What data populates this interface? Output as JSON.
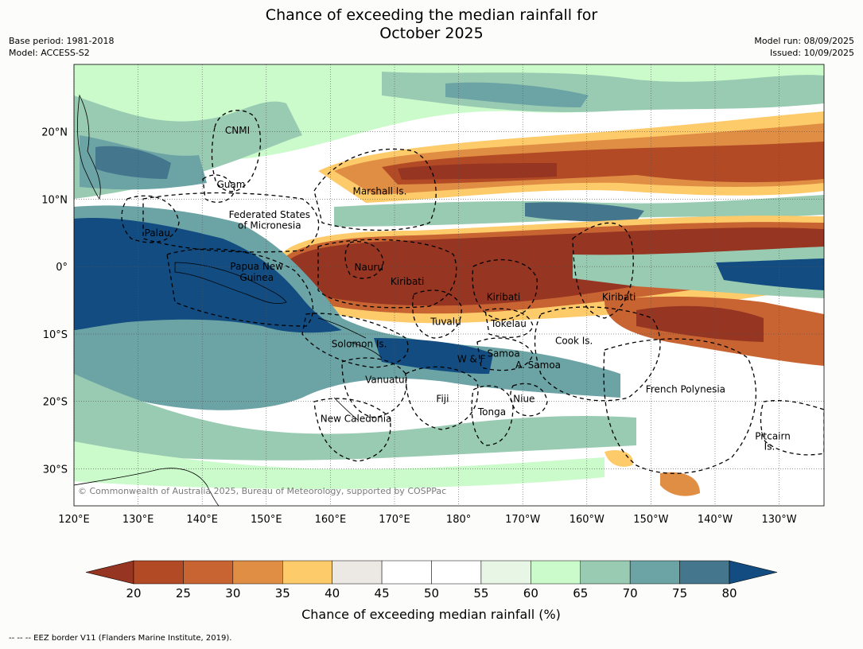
{
  "header": {
    "title_line1": "Chance of exceeding the median rainfall for",
    "title_line2": "October 2025",
    "base_period": "Base period: 1981-2018",
    "model": "Model: ACCESS-S2",
    "model_run": "Model run: 08/09/2025",
    "issued": "Issued: 10/09/2025"
  },
  "map": {
    "lat_ticks": [
      {
        "lat": 20,
        "label": "20°N"
      },
      {
        "lat": 10,
        "label": "10°N"
      },
      {
        "lat": 0,
        "label": "0°"
      },
      {
        "lat": -10,
        "label": "10°S"
      },
      {
        "lat": -20,
        "label": "20°S"
      },
      {
        "lat": -30,
        "label": "30°S"
      }
    ],
    "lon_ticks": [
      {
        "lon": 120,
        "label": "120°E"
      },
      {
        "lon": 130,
        "label": "130°E"
      },
      {
        "lon": 140,
        "label": "140°E"
      },
      {
        "lon": 150,
        "label": "150°E"
      },
      {
        "lon": 160,
        "label": "160°E"
      },
      {
        "lon": 170,
        "label": "170°E"
      },
      {
        "lon": 180,
        "label": "180°"
      },
      {
        "lon": 190,
        "label": "170°W"
      },
      {
        "lon": 200,
        "label": "160°W"
      },
      {
        "lon": 210,
        "label": "150°W"
      },
      {
        "lon": 220,
        "label": "140°W"
      },
      {
        "lon": 230,
        "label": "130°W"
      }
    ],
    "region_labels": [
      {
        "name": "CNMI",
        "lon": 145.5,
        "lat": 20.2
      },
      {
        "name": "Guam",
        "lon": 144.5,
        "lat": 12.2
      },
      {
        "name": "Marshall Is.",
        "lon": 167.7,
        "lat": 11.2
      },
      {
        "name": "Federated States",
        "lon": 150.5,
        "lat": 7.7
      },
      {
        "name": "of Micronesia",
        "lon": 150.5,
        "lat": 6.1
      },
      {
        "name": "Palau",
        "lon": 133,
        "lat": 5
      },
      {
        "name": "Papua New",
        "lon": 148.5,
        "lat": 0
      },
      {
        "name": "Guinea",
        "lon": 148.5,
        "lat": -1.6
      },
      {
        "name": "Nauru",
        "lon": 166,
        "lat": -0.1
      },
      {
        "name": "Kiribati",
        "lon": 172,
        "lat": -2.2
      },
      {
        "name": "Kiribati",
        "lon": 187,
        "lat": -4.5
      },
      {
        "name": "Kiribati",
        "lon": 205,
        "lat": -4.5
      },
      {
        "name": "Tuvalu",
        "lon": 178,
        "lat": -8.2
      },
      {
        "name": "Tokelau",
        "lon": 187.8,
        "lat": -8.5
      },
      {
        "name": "Cook Is.",
        "lon": 198,
        "lat": -11
      },
      {
        "name": "Solomon Is.",
        "lon": 164.5,
        "lat": -11.5
      },
      {
        "name": "W & F",
        "lon": 182,
        "lat": -13.7
      },
      {
        "name": "Samoa",
        "lon": 187,
        "lat": -12.9
      },
      {
        "name": "A. Samoa",
        "lon": 192.4,
        "lat": -14.6
      },
      {
        "name": "Vanuatu",
        "lon": 168.5,
        "lat": -16.8
      },
      {
        "name": "Fiji",
        "lon": 177.5,
        "lat": -19.6
      },
      {
        "name": "Niue",
        "lon": 190.2,
        "lat": -19.6
      },
      {
        "name": "Tonga",
        "lon": 185.2,
        "lat": -21.6
      },
      {
        "name": "French Polynesia",
        "lon": 215.4,
        "lat": -18.2
      },
      {
        "name": "New Caledonia",
        "lon": 164,
        "lat": -22.6
      },
      {
        "name": "Pitcairn",
        "lon": 229,
        "lat": -25.2
      },
      {
        "name": "Is.",
        "lon": 228.5,
        "lat": -26.7
      }
    ],
    "copyright": "© Commonwealth of Australia 2025, Bureau of Meteorology, supported by COSPPac"
  },
  "colorbar": {
    "ticks": [
      "20",
      "25",
      "30",
      "35",
      "40",
      "45",
      "50",
      "55",
      "60",
      "65",
      "70",
      "75",
      "80"
    ],
    "colors": [
      "#963521",
      "#b24a26",
      "#c86432",
      "#e18e45",
      "#fecb6a",
      "#ece9e4",
      "#ffffff",
      "#ffffff",
      "#e8f6e6",
      "#cbfbcb",
      "#99cbb2",
      "#6ca3a5",
      "#44768e",
      "#124c81"
    ],
    "title": "Chance of exceeding median rainfall (%)"
  },
  "footnote": "--  --  -- EEZ border V11 (Flanders Marine Institute, 2019)."
}
